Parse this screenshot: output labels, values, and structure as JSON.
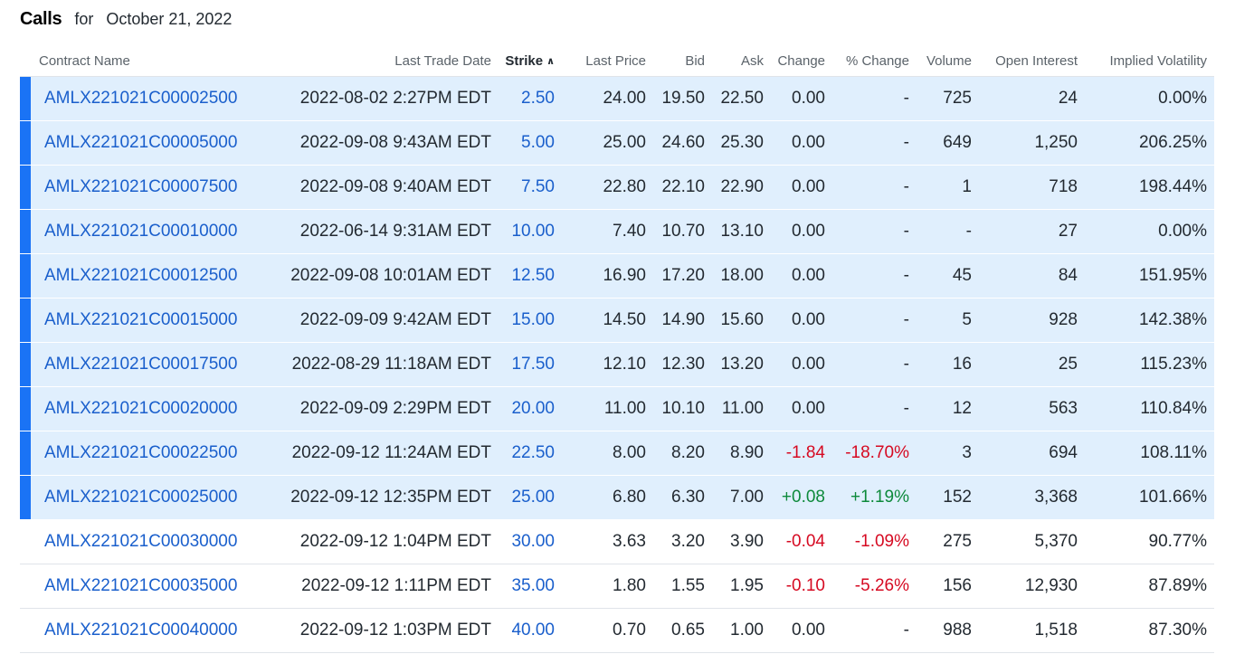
{
  "header": {
    "title": "Calls",
    "for_label": "for",
    "date": "October 21, 2022"
  },
  "columns": [
    "Contract Name",
    "Last Trade Date",
    "Strike",
    "Last Price",
    "Bid",
    "Ask",
    "Change",
    "% Change",
    "Volume",
    "Open Interest",
    "Implied Volatility"
  ],
  "sorted_column": "Strike",
  "sort_icon": "chevron-up-icon",
  "colors": {
    "in_the_money_bg": "#e0effd",
    "in_the_money_marker": "#1a73f5",
    "link": "#1a5fcc",
    "positive": "#0e8a3b",
    "negative": "#d60a22"
  },
  "rows": [
    {
      "contract": "AMLX221021C00002500",
      "last_trade_date": "2022-08-02 2:27PM EDT",
      "strike": "2.50",
      "last_price": "24.00",
      "bid": "19.50",
      "ask": "22.50",
      "change": "0.00",
      "pct_change": "-",
      "volume": "725",
      "open_interest": "24",
      "iv": "0.00%",
      "itm": true,
      "dir": "flat"
    },
    {
      "contract": "AMLX221021C00005000",
      "last_trade_date": "2022-09-08 9:43AM EDT",
      "strike": "5.00",
      "last_price": "25.00",
      "bid": "24.60",
      "ask": "25.30",
      "change": "0.00",
      "pct_change": "-",
      "volume": "649",
      "open_interest": "1,250",
      "iv": "206.25%",
      "itm": true,
      "dir": "flat"
    },
    {
      "contract": "AMLX221021C00007500",
      "last_trade_date": "2022-09-08 9:40AM EDT",
      "strike": "7.50",
      "last_price": "22.80",
      "bid": "22.10",
      "ask": "22.90",
      "change": "0.00",
      "pct_change": "-",
      "volume": "1",
      "open_interest": "718",
      "iv": "198.44%",
      "itm": true,
      "dir": "flat"
    },
    {
      "contract": "AMLX221021C00010000",
      "last_trade_date": "2022-06-14 9:31AM EDT",
      "strike": "10.00",
      "last_price": "7.40",
      "bid": "10.70",
      "ask": "13.10",
      "change": "0.00",
      "pct_change": "-",
      "volume": "-",
      "open_interest": "27",
      "iv": "0.00%",
      "itm": true,
      "dir": "flat"
    },
    {
      "contract": "AMLX221021C00012500",
      "last_trade_date": "2022-09-08 10:01AM EDT",
      "strike": "12.50",
      "last_price": "16.90",
      "bid": "17.20",
      "ask": "18.00",
      "change": "0.00",
      "pct_change": "-",
      "volume": "45",
      "open_interest": "84",
      "iv": "151.95%",
      "itm": true,
      "dir": "flat"
    },
    {
      "contract": "AMLX221021C00015000",
      "last_trade_date": "2022-09-09 9:42AM EDT",
      "strike": "15.00",
      "last_price": "14.50",
      "bid": "14.90",
      "ask": "15.60",
      "change": "0.00",
      "pct_change": "-",
      "volume": "5",
      "open_interest": "928",
      "iv": "142.38%",
      "itm": true,
      "dir": "flat"
    },
    {
      "contract": "AMLX221021C00017500",
      "last_trade_date": "2022-08-29 11:18AM EDT",
      "strike": "17.50",
      "last_price": "12.10",
      "bid": "12.30",
      "ask": "13.20",
      "change": "0.00",
      "pct_change": "-",
      "volume": "16",
      "open_interest": "25",
      "iv": "115.23%",
      "itm": true,
      "dir": "flat"
    },
    {
      "contract": "AMLX221021C00020000",
      "last_trade_date": "2022-09-09 2:29PM EDT",
      "strike": "20.00",
      "last_price": "11.00",
      "bid": "10.10",
      "ask": "11.00",
      "change": "0.00",
      "pct_change": "-",
      "volume": "12",
      "open_interest": "563",
      "iv": "110.84%",
      "itm": true,
      "dir": "flat"
    },
    {
      "contract": "AMLX221021C00022500",
      "last_trade_date": "2022-09-12 11:24AM EDT",
      "strike": "22.50",
      "last_price": "8.00",
      "bid": "8.20",
      "ask": "8.90",
      "change": "-1.84",
      "pct_change": "-18.70%",
      "volume": "3",
      "open_interest": "694",
      "iv": "108.11%",
      "itm": true,
      "dir": "neg"
    },
    {
      "contract": "AMLX221021C00025000",
      "last_trade_date": "2022-09-12 12:35PM EDT",
      "strike": "25.00",
      "last_price": "6.80",
      "bid": "6.30",
      "ask": "7.00",
      "change": "+0.08",
      "pct_change": "+1.19%",
      "volume": "152",
      "open_interest": "3,368",
      "iv": "101.66%",
      "itm": true,
      "dir": "pos"
    },
    {
      "contract": "AMLX221021C00030000",
      "last_trade_date": "2022-09-12 1:04PM EDT",
      "strike": "30.00",
      "last_price": "3.63",
      "bid": "3.20",
      "ask": "3.90",
      "change": "-0.04",
      "pct_change": "-1.09%",
      "volume": "275",
      "open_interest": "5,370",
      "iv": "90.77%",
      "itm": false,
      "dir": "neg"
    },
    {
      "contract": "AMLX221021C00035000",
      "last_trade_date": "2022-09-12 1:11PM EDT",
      "strike": "35.00",
      "last_price": "1.80",
      "bid": "1.55",
      "ask": "1.95",
      "change": "-0.10",
      "pct_change": "-5.26%",
      "volume": "156",
      "open_interest": "12,930",
      "iv": "87.89%",
      "itm": false,
      "dir": "neg"
    },
    {
      "contract": "AMLX221021C00040000",
      "last_trade_date": "2022-09-12 1:03PM EDT",
      "strike": "40.00",
      "last_price": "0.70",
      "bid": "0.65",
      "ask": "1.00",
      "change": "0.00",
      "pct_change": "-",
      "volume": "988",
      "open_interest": "1,518",
      "iv": "87.30%",
      "itm": false,
      "dir": "flat"
    }
  ]
}
